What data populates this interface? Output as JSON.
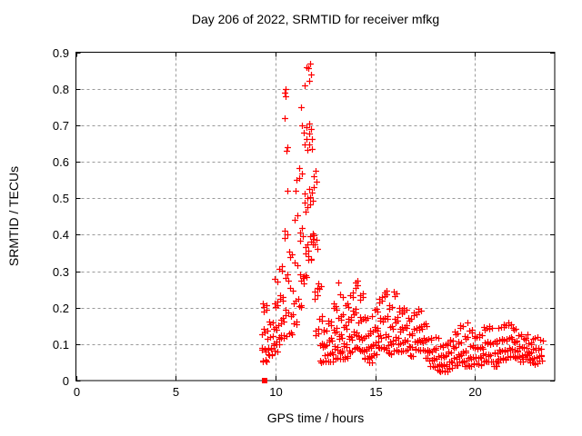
{
  "title": "Day 206 of 2022, SRMTID for receiver mfkg",
  "chart_data": {
    "type": "scatter",
    "title": "Day 206 of 2022, SRMTID for receiver mfkg",
    "xlabel": "GPS time / hours",
    "ylabel": "SRMTID / TECUs",
    "xlim": [
      0,
      24
    ],
    "ylim": [
      0,
      0.9
    ],
    "xticks": [
      {
        "v": 0,
        "label": "0"
      },
      {
        "v": 5,
        "label": "5"
      },
      {
        "v": 10,
        "label": "10"
      },
      {
        "v": 15,
        "label": "15"
      },
      {
        "v": 20,
        "label": "20"
      }
    ],
    "yticks": [
      {
        "v": 0.0,
        "label": "0"
      },
      {
        "v": 0.1,
        "label": "0.1"
      },
      {
        "v": 0.2,
        "label": "0.2"
      },
      {
        "v": 0.3,
        "label": "0.3"
      },
      {
        "v": 0.4,
        "label": "0.4"
      },
      {
        "v": 0.5,
        "label": "0.5"
      },
      {
        "v": 0.6,
        "label": "0.6"
      },
      {
        "v": 0.7,
        "label": "0.7"
      },
      {
        "v": 0.8,
        "label": "0.8"
      },
      {
        "v": 0.9,
        "label": "0.9"
      }
    ],
    "grid": true,
    "legend": "none",
    "marker": "plus",
    "marker_color": "#ff0000",
    "axis_color": "#000000",
    "grid_color": "#9a9a9a",
    "background": "#ffffff",
    "data_span_hours": [
      9.3,
      23.4
    ],
    "peak": {
      "x": 11.7,
      "y": 0.87
    },
    "zero_marker": {
      "x": 9.45,
      "y": 0,
      "shape": "filled-square",
      "color": "#ff0000"
    },
    "bins_format": "[t_start_hours, t_end_hours, value_min_TECU, value_max_TECU, n_points]",
    "band_bins": [
      [
        9.3,
        9.6,
        0.05,
        0.25,
        18
      ],
      [
        9.6,
        9.9,
        0.07,
        0.2,
        14
      ],
      [
        9.9,
        10.15,
        0.08,
        0.28,
        16
      ],
      [
        10.15,
        10.4,
        0.1,
        0.32,
        16
      ],
      [
        10.4,
        10.65,
        0.1,
        0.45,
        12
      ],
      [
        10.65,
        10.9,
        0.12,
        0.4,
        10
      ],
      [
        10.9,
        11.15,
        0.15,
        0.55,
        10
      ],
      [
        11.15,
        11.4,
        0.2,
        0.72,
        14
      ],
      [
        11.4,
        11.65,
        0.28,
        0.86,
        20
      ],
      [
        11.65,
        11.9,
        0.33,
        0.87,
        22
      ],
      [
        11.9,
        12.15,
        0.1,
        0.6,
        16
      ],
      [
        12.15,
        12.4,
        0.04,
        0.3,
        12
      ],
      [
        12.4,
        12.65,
        0.05,
        0.16,
        12
      ],
      [
        12.65,
        12.9,
        0.05,
        0.2,
        14
      ],
      [
        12.9,
        13.15,
        0.06,
        0.27,
        16
      ],
      [
        13.15,
        13.4,
        0.06,
        0.24,
        16
      ],
      [
        13.4,
        13.65,
        0.05,
        0.22,
        14
      ],
      [
        13.65,
        13.9,
        0.07,
        0.26,
        14
      ],
      [
        13.9,
        14.15,
        0.08,
        0.31,
        16
      ],
      [
        14.15,
        14.4,
        0.08,
        0.28,
        16
      ],
      [
        14.4,
        14.65,
        0.06,
        0.22,
        14
      ],
      [
        14.65,
        14.9,
        0.05,
        0.18,
        14
      ],
      [
        14.9,
        15.15,
        0.06,
        0.2,
        14
      ],
      [
        15.15,
        15.4,
        0.08,
        0.24,
        14
      ],
      [
        15.4,
        15.65,
        0.08,
        0.27,
        14
      ],
      [
        15.65,
        15.9,
        0.07,
        0.24,
        14
      ],
      [
        15.9,
        16.15,
        0.08,
        0.3,
        14
      ],
      [
        16.15,
        16.4,
        0.08,
        0.25,
        14
      ],
      [
        16.4,
        16.65,
        0.07,
        0.2,
        12
      ],
      [
        16.65,
        16.9,
        0.06,
        0.18,
        12
      ],
      [
        16.9,
        17.15,
        0.08,
        0.2,
        12
      ],
      [
        17.15,
        17.4,
        0.08,
        0.22,
        14
      ],
      [
        17.4,
        17.65,
        0.06,
        0.19,
        12
      ],
      [
        17.65,
        17.9,
        0.04,
        0.15,
        12
      ],
      [
        17.9,
        18.15,
        0.03,
        0.12,
        12
      ],
      [
        18.15,
        18.4,
        0.02,
        0.1,
        14
      ],
      [
        18.4,
        18.65,
        0.02,
        0.11,
        14
      ],
      [
        18.65,
        18.9,
        0.03,
        0.13,
        12
      ],
      [
        18.9,
        19.15,
        0.04,
        0.16,
        12
      ],
      [
        19.15,
        19.4,
        0.05,
        0.19,
        14
      ],
      [
        19.4,
        19.65,
        0.04,
        0.16,
        12
      ],
      [
        19.65,
        19.9,
        0.03,
        0.14,
        12
      ],
      [
        19.9,
        20.15,
        0.04,
        0.13,
        12
      ],
      [
        20.15,
        20.4,
        0.04,
        0.14,
        12
      ],
      [
        20.4,
        20.65,
        0.05,
        0.17,
        12
      ],
      [
        20.65,
        20.9,
        0.05,
        0.18,
        12
      ],
      [
        20.9,
        21.15,
        0.04,
        0.14,
        12
      ],
      [
        21.15,
        21.4,
        0.05,
        0.15,
        12
      ],
      [
        21.4,
        21.65,
        0.05,
        0.16,
        12
      ],
      [
        21.65,
        21.9,
        0.06,
        0.17,
        14
      ],
      [
        21.9,
        22.15,
        0.06,
        0.16,
        14
      ],
      [
        22.15,
        22.4,
        0.05,
        0.15,
        12
      ],
      [
        22.4,
        22.65,
        0.06,
        0.14,
        12
      ],
      [
        22.65,
        22.9,
        0.05,
        0.13,
        12
      ],
      [
        22.9,
        23.15,
        0.04,
        0.12,
        12
      ],
      [
        23.15,
        23.4,
        0.05,
        0.12,
        10
      ]
    ],
    "outlier_points": [
      [
        10.45,
        0.72
      ],
      [
        10.47,
        0.79
      ],
      [
        10.5,
        0.78
      ],
      [
        10.52,
        0.8
      ],
      [
        10.55,
        0.63
      ],
      [
        10.58,
        0.64
      ],
      [
        10.62,
        0.52
      ],
      [
        11.0,
        0.52
      ],
      [
        11.05,
        0.55
      ],
      [
        11.3,
        0.75
      ],
      [
        11.35,
        0.7
      ],
      [
        11.45,
        0.81
      ],
      [
        11.55,
        0.86
      ],
      [
        11.72,
        0.87
      ],
      [
        11.78,
        0.84
      ]
    ]
  }
}
